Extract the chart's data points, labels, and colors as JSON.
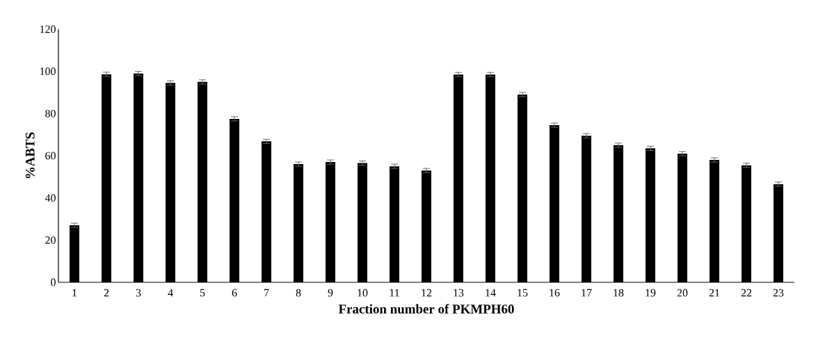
{
  "chart_data": {
    "type": "bar",
    "xlabel": "Fraction number of PKMPH60",
    "ylabel": "%ABTS",
    "categories": [
      "1",
      "2",
      "3",
      "4",
      "5",
      "6",
      "7",
      "8",
      "9",
      "10",
      "11",
      "12",
      "13",
      "14",
      "15",
      "16",
      "17",
      "18",
      "19",
      "20",
      "21",
      "22",
      "23"
    ],
    "values": [
      27,
      98.6,
      99,
      94.5,
      95,
      77.5,
      66.8,
      56,
      57,
      56.5,
      55,
      53,
      98.5,
      98.5,
      89,
      74.5,
      69.5,
      65,
      63.5,
      61,
      58,
      55.5,
      46.5
    ],
    "errors": [
      1,
      1,
      1,
      1,
      1,
      1,
      1,
      1,
      1,
      1,
      1,
      1,
      1,
      1,
      1,
      1,
      1,
      1,
      1,
      1,
      1,
      1,
      1
    ],
    "color": "#000000",
    "ylim": [
      0,
      120
    ],
    "yticks": [
      0,
      20,
      40,
      60,
      80,
      100,
      120
    ],
    "grid": false
  }
}
